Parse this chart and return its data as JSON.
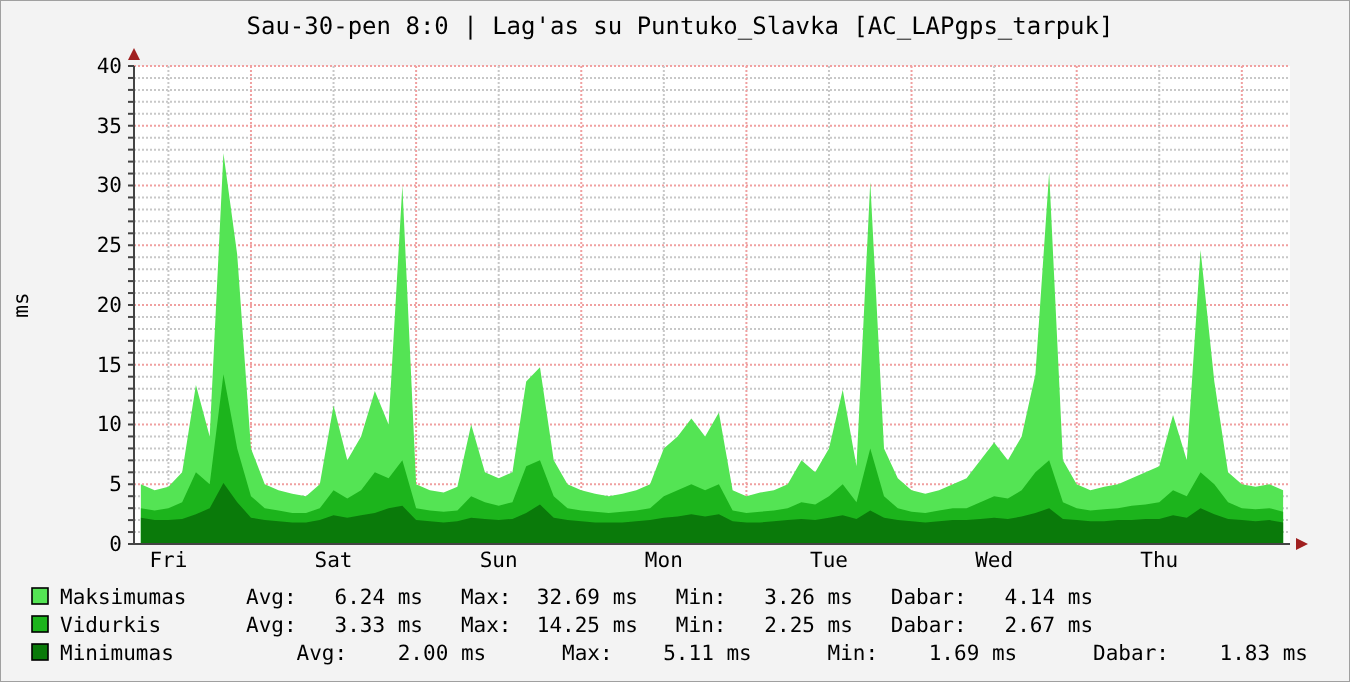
{
  "chart_data": {
    "type": "area",
    "title": "Sau-30-pen 8:0 | Lag'as su Puntuko_Slavka [AC_LAPgps_tarpuk]",
    "ylabel": "ms",
    "categories": [
      null,
      null,
      "Fri",
      null,
      null,
      null,
      null,
      null,
      null,
      null,
      null,
      null,
      null,
      null,
      "Sat",
      null,
      null,
      null,
      null,
      null,
      null,
      null,
      null,
      null,
      null,
      null,
      "Sun",
      null,
      null,
      null,
      null,
      null,
      null,
      null,
      null,
      null,
      null,
      null,
      "Mon",
      null,
      null,
      null,
      null,
      null,
      null,
      null,
      null,
      null,
      null,
      null,
      "Tue",
      null,
      null,
      null,
      null,
      null,
      null,
      null,
      null,
      null,
      null,
      null,
      "Wed",
      null,
      null,
      null,
      null,
      null,
      null,
      null,
      null,
      null,
      null,
      null,
      "Thu",
      null,
      null,
      null,
      null,
      null,
      null,
      null,
      null,
      null
    ],
    "ylim": [
      0,
      40
    ],
    "yticks": [
      0,
      {
        "value": 1,
        "label": null
      },
      {
        "value": 2,
        "label": null
      },
      {
        "value": 3,
        "label": null
      },
      {
        "value": 4,
        "label": null
      },
      5,
      {
        "value": 6,
        "label": null
      },
      {
        "value": 7,
        "label": null
      },
      {
        "value": 8,
        "label": null
      },
      {
        "value": 9,
        "label": null
      },
      10,
      {
        "value": 11,
        "label": null
      },
      {
        "value": 12,
        "label": null
      },
      {
        "value": 13,
        "label": null
      },
      {
        "value": 14,
        "label": null
      },
      15,
      {
        "value": 16,
        "label": null
      },
      {
        "value": 17,
        "label": null
      },
      {
        "value": 18,
        "label": null
      },
      {
        "value": 19,
        "label": null
      },
      20,
      {
        "value": 21,
        "label": null
      },
      {
        "value": 22,
        "label": null
      },
      {
        "value": 23,
        "label": null
      },
      {
        "value": 24,
        "label": null
      },
      25,
      {
        "value": 26,
        "label": null
      },
      {
        "value": 27,
        "label": null
      },
      {
        "value": 28,
        "label": null
      },
      {
        "value": 29,
        "label": null
      },
      30,
      {
        "value": 31,
        "label": null
      },
      {
        "value": 32,
        "label": null
      },
      {
        "value": 33,
        "label": null
      },
      {
        "value": 34,
        "label": null
      },
      35,
      {
        "value": 36,
        "label": null
      },
      {
        "value": 37,
        "label": null
      },
      {
        "value": 38,
        "label": null
      },
      {
        "value": 39,
        "label": null
      },
      40
    ],
    "grid": true,
    "legend": "bottom",
    "series": [
      {
        "name": "Maksimumas",
        "color": "#54e454",
        "values": [
          5,
          4.5,
          4.8,
          6,
          13.3,
          9,
          32.7,
          24.2,
          8,
          5,
          4.5,
          4.2,
          4,
          5,
          11.6,
          7,
          9,
          12.8,
          10,
          30,
          5,
          4.5,
          4.3,
          4.8,
          10,
          6,
          5.5,
          6,
          13.6,
          14.8,
          7,
          5,
          4.5,
          4.2,
          4,
          4.2,
          4.5,
          5,
          8,
          9,
          10.5,
          9,
          11,
          4.5,
          4,
          4.3,
          4.5,
          5,
          7,
          6,
          8,
          12.9,
          6.5,
          30.3,
          8,
          5.5,
          4.5,
          4.2,
          4.5,
          5,
          5.5,
          7,
          8.5,
          7,
          9,
          14.2,
          31.1,
          7,
          5,
          4.5,
          4.8,
          5,
          5.5,
          6,
          6.5,
          10.8,
          7,
          24.6,
          13.6,
          6,
          5,
          4.8,
          5,
          4.5
        ]
      },
      {
        "name": "Vidurkis",
        "color": "#1cb41c",
        "values": [
          3,
          2.8,
          3,
          3.5,
          6,
          5,
          14.2,
          8,
          4,
          3,
          2.8,
          2.6,
          2.6,
          3,
          4.5,
          3.8,
          4.5,
          6,
          5.5,
          7,
          3,
          2.8,
          2.7,
          2.8,
          4,
          3.5,
          3.2,
          3.5,
          6.5,
          7,
          4,
          3,
          2.8,
          2.7,
          2.6,
          2.7,
          2.8,
          3,
          4,
          4.5,
          5,
          4.5,
          5,
          2.8,
          2.6,
          2.7,
          2.8,
          3,
          3.5,
          3.3,
          4,
          5,
          3.5,
          8,
          4,
          3,
          2.7,
          2.6,
          2.8,
          3,
          3,
          3.5,
          4,
          3.8,
          4.5,
          6,
          7,
          3.5,
          3,
          2.8,
          2.9,
          3,
          3.2,
          3.3,
          3.5,
          4.5,
          4,
          6,
          5,
          3.5,
          3,
          2.9,
          3,
          2.7
        ]
      },
      {
        "name": "Minimumas",
        "color": "#0a7a0a",
        "values": [
          2.2,
          2,
          2,
          2.1,
          2.5,
          3,
          5.1,
          3.5,
          2.2,
          2,
          1.9,
          1.8,
          1.8,
          2,
          2.4,
          2.2,
          2.4,
          2.6,
          3,
          3.2,
          2,
          1.9,
          1.8,
          1.9,
          2.2,
          2.1,
          2,
          2.1,
          2.6,
          3.3,
          2.2,
          2,
          1.9,
          1.8,
          1.8,
          1.8,
          1.9,
          2,
          2.2,
          2.3,
          2.5,
          2.3,
          2.5,
          1.9,
          1.8,
          1.8,
          1.9,
          2,
          2.1,
          2,
          2.2,
          2.4,
          2.1,
          2.8,
          2.2,
          2,
          1.9,
          1.8,
          1.9,
          2,
          2,
          2.1,
          2.2,
          2.1,
          2.3,
          2.6,
          3,
          2.1,
          2,
          1.9,
          1.9,
          2,
          2,
          2.1,
          2.1,
          2.4,
          2.2,
          3,
          2.5,
          2.1,
          2,
          1.9,
          2,
          1.8
        ]
      }
    ],
    "annotations": [
      "Avg:   6.24 ms   Max:  32.69 ms   Min:   3.26 ms   Dabar:   4.14 ms",
      "Avg:   3.33 ms   Max:  14.25 ms   Min:   2.25 ms   Dabar:   2.67 ms",
      "    Avg:    2.00 ms      Max:    5.11 ms      Min:    1.69 ms      Dabar:    1.83 ms"
    ]
  }
}
